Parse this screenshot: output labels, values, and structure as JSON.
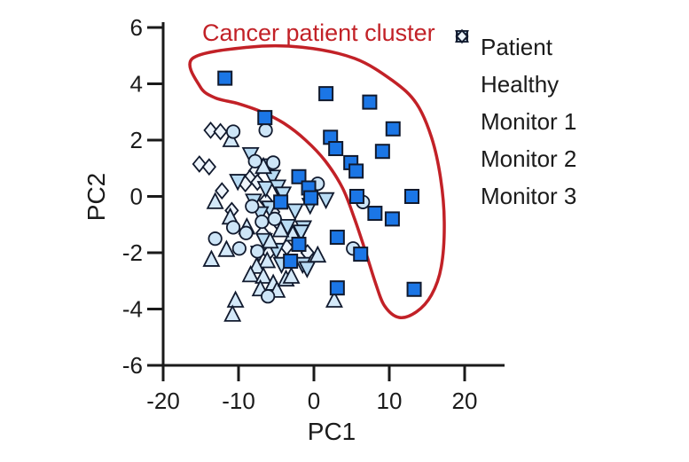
{
  "figure_colors": {
    "background": "#ffffff",
    "axis": "#1a1a1a",
    "marker_stroke": "#111a2e",
    "annotation_red": "#c22127"
  },
  "chart_data": {
    "type": "scatter",
    "title": "",
    "xlabel": "PC1",
    "ylabel": "PC2",
    "xlim": [
      -20,
      25
    ],
    "ylim": [
      -6,
      6
    ],
    "x_ticks": [
      -20,
      -10,
      0,
      10,
      20
    ],
    "y_ticks": [
      6,
      4,
      2,
      0,
      -2,
      -4,
      -6
    ],
    "grid": false,
    "legend_position": "right",
    "annotation": {
      "label": "Cancer patient cluster",
      "color": "#c22127",
      "outline": [
        [
          -16.1,
          4.9
        ],
        [
          -8.7,
          5.3
        ],
        [
          -1.6,
          5.3
        ],
        [
          5.4,
          4.9
        ],
        [
          10.5,
          4.1
        ],
        [
          13.6,
          3.3
        ],
        [
          15.6,
          2.1
        ],
        [
          16.8,
          0.66
        ],
        [
          17.3,
          -0.9
        ],
        [
          16.9,
          -2.5
        ],
        [
          15.6,
          -3.5
        ],
        [
          13.6,
          -4.1
        ],
        [
          11.3,
          -4.3
        ],
        [
          9.4,
          -3.9
        ],
        [
          8.2,
          -3.1
        ],
        [
          6.9,
          -2.0
        ],
        [
          5.4,
          -0.8
        ],
        [
          3.8,
          0.3
        ],
        [
          1.5,
          1.26
        ],
        [
          -1.1,
          2.0
        ],
        [
          -4.0,
          2.6
        ],
        [
          -6.9,
          3.0
        ],
        [
          -10.1,
          3.3
        ],
        [
          -13.1,
          3.5
        ],
        [
          -15.1,
          3.9
        ]
      ]
    },
    "series": [
      {
        "name": "Patient",
        "marker": "square",
        "fill": "#1b76e6",
        "points": [
          [
            -11.8,
            4.2
          ],
          [
            1.6,
            3.65
          ],
          [
            7.4,
            3.35
          ],
          [
            -6.5,
            2.8
          ],
          [
            10.5,
            2.4
          ],
          [
            2.2,
            2.1
          ],
          [
            2.9,
            1.7
          ],
          [
            9.1,
            1.6
          ],
          [
            4.9,
            1.2
          ],
          [
            5.6,
            0.9
          ],
          [
            5.7,
            0.0
          ],
          [
            -2.0,
            0.7
          ],
          [
            -0.7,
            0.3
          ],
          [
            -0.4,
            -0.05
          ],
          [
            13.0,
            0.0
          ],
          [
            -4.4,
            -0.2
          ],
          [
            8.1,
            -0.6
          ],
          [
            10.4,
            -0.8
          ],
          [
            3.1,
            -1.45
          ],
          [
            -2.0,
            -1.7
          ],
          [
            6.2,
            -2.05
          ],
          [
            -3.1,
            -2.3
          ],
          [
            3.1,
            -3.25
          ],
          [
            13.3,
            -3.3
          ]
        ]
      },
      {
        "name": "Healthy",
        "marker": "circle",
        "fill": "#cde5f7",
        "points": [
          [
            -10.7,
            2.3
          ],
          [
            -6.4,
            2.35
          ],
          [
            -7.8,
            1.25
          ],
          [
            -5.4,
            1.2
          ],
          [
            0.5,
            0.45
          ],
          [
            6.5,
            -0.2
          ],
          [
            -8.2,
            -0.35
          ],
          [
            -6.9,
            -0.9
          ],
          [
            -5.2,
            -0.8
          ],
          [
            -10.7,
            -1.1
          ],
          [
            -13.1,
            -1.5
          ],
          [
            -9.0,
            -1.3
          ],
          [
            -9.9,
            -1.85
          ],
          [
            -7.5,
            -1.95
          ],
          [
            5.2,
            -1.85
          ],
          [
            -6.1,
            -3.55
          ]
        ]
      },
      {
        "name": "Monitor 1",
        "marker": "triangle-up",
        "fill": "#d4e9f9",
        "points": [
          [
            -11.0,
            2.0
          ],
          [
            -6.7,
            1.05
          ],
          [
            -13.1,
            -0.2
          ],
          [
            -11.1,
            -0.75
          ],
          [
            -8.9,
            -1.1
          ],
          [
            -2.8,
            -1.35
          ],
          [
            -4.4,
            -1.2
          ],
          [
            -5.8,
            -1.6
          ],
          [
            -13.6,
            -2.25
          ],
          [
            -11.6,
            -1.9
          ],
          [
            -6.2,
            -2.3
          ],
          [
            -7.6,
            -2.5
          ],
          [
            -8.4,
            -2.8
          ],
          [
            -6.7,
            -2.85
          ],
          [
            -5.4,
            -3.1
          ],
          [
            -7.1,
            -3.3
          ],
          [
            -4.9,
            -3.35
          ],
          [
            -3.7,
            -2.95
          ],
          [
            -3.0,
            -2.85
          ],
          [
            0.5,
            -2.1
          ],
          [
            2.7,
            -3.7
          ],
          [
            -10.4,
            -3.7
          ],
          [
            -10.8,
            -4.2
          ]
        ]
      },
      {
        "name": "Monitor 2",
        "marker": "triangle-down",
        "fill": "#b9dcf4",
        "points": [
          [
            -8.4,
            1.5
          ],
          [
            -6.0,
            1.1
          ],
          [
            -5.5,
            0.7
          ],
          [
            -10.1,
            0.55
          ],
          [
            -6.4,
            0.3
          ],
          [
            -4.8,
            0.35
          ],
          [
            -4.1,
            0.1
          ],
          [
            -8.0,
            -0.15
          ],
          [
            -0.5,
            -0.3
          ],
          [
            1.6,
            -0.1
          ],
          [
            -2.5,
            -0.5
          ],
          [
            -5.9,
            -0.4
          ],
          [
            -7.1,
            -0.6
          ],
          [
            -3.5,
            -1.05
          ],
          [
            -1.4,
            -1.1
          ],
          [
            -1.7,
            -1.25
          ],
          [
            -6.6,
            -1.55
          ],
          [
            -5.0,
            -1.9
          ],
          [
            -7.3,
            -2.0
          ],
          [
            -4.3,
            -2.4
          ],
          [
            -1.5,
            -2.4
          ],
          [
            -0.9,
            -2.55
          ]
        ]
      },
      {
        "name": "Monitor 3",
        "marker": "diamond",
        "fill": "#eef5fc",
        "points": [
          [
            -13.7,
            2.35
          ],
          [
            -12.4,
            2.3
          ],
          [
            -15.2,
            1.15
          ],
          [
            -13.9,
            1.05
          ],
          [
            -7.8,
            0.9
          ],
          [
            -8.5,
            0.65
          ],
          [
            -7.5,
            0.5
          ],
          [
            -9.1,
            0.45
          ],
          [
            -12.2,
            0.2
          ],
          [
            -6.4,
            -0.15
          ],
          [
            -10.9,
            -0.5
          ],
          [
            -5.4,
            -0.55
          ],
          [
            -4.7,
            -0.95
          ],
          [
            -6.8,
            -1.3
          ],
          [
            -3.6,
            -1.8
          ],
          [
            -6.0,
            -2.0
          ],
          [
            -0.85,
            -2.0
          ]
        ]
      }
    ]
  }
}
